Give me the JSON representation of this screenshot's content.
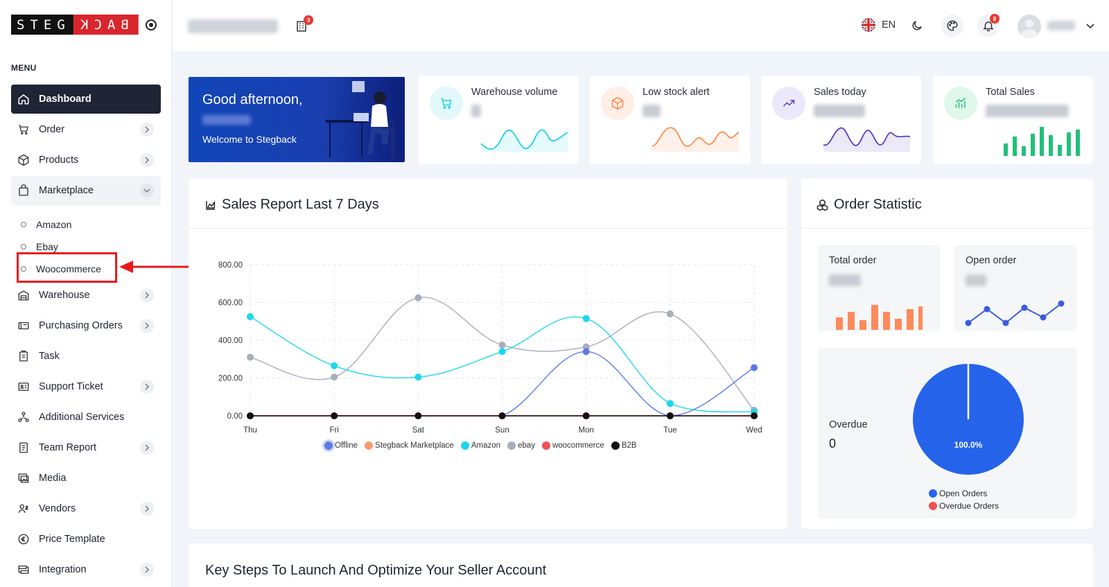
{
  "logo": {
    "left_text": "STEG",
    "right_text": "BACK"
  },
  "sidebar": {
    "menu_title": "MENU",
    "items": [
      {
        "label": "Dashboard",
        "icon": "home-icon",
        "active": true
      },
      {
        "label": "Order",
        "icon": "cart-icon"
      },
      {
        "label": "Products",
        "icon": "box-icon"
      },
      {
        "label": "Marketplace",
        "icon": "bag-icon",
        "open": true
      },
      {
        "label": "Warehouse",
        "icon": "warehouse-icon"
      },
      {
        "label": "Purchasing Orders",
        "icon": "purchase-icon"
      },
      {
        "label": "Task",
        "icon": "clipboard-icon"
      },
      {
        "label": "Support Ticket",
        "icon": "ticket-icon"
      },
      {
        "label": "Additional Services",
        "icon": "services-icon"
      },
      {
        "label": "Team Report",
        "icon": "report-icon"
      },
      {
        "label": "Media",
        "icon": "media-icon"
      },
      {
        "label": "Vendors",
        "icon": "vendors-icon"
      },
      {
        "label": "Price Template",
        "icon": "euro-icon"
      },
      {
        "label": "Integration",
        "icon": "integration-icon"
      }
    ],
    "sub_items": [
      "Amazon",
      "Ebay",
      "Woocommerce"
    ]
  },
  "topbar": {
    "building_badge": "3",
    "language": "EN",
    "notification_badge": "8"
  },
  "welcome": {
    "greeting": "Good afternoon,",
    "subtitle": "Welcome to Stegback"
  },
  "stats": [
    {
      "label": "Warehouse volume",
      "color": "#1dd3e6"
    },
    {
      "label": "Low stock alert",
      "color": "#ff8a4c"
    },
    {
      "label": "Sales today",
      "color": "#5b3fc4"
    },
    {
      "label": "Total Sales",
      "color": "#22c07a"
    }
  ],
  "sales_report": {
    "title": "Sales Report Last 7 Days",
    "legend": [
      "Offline",
      "Stegback Marketplace",
      "Amazon",
      "ebay",
      "woocommerce",
      "B2B"
    ]
  },
  "chart_data": {
    "type": "line",
    "categories": [
      "Thu",
      "Fri",
      "Sat",
      "Sun",
      "Mon",
      "Tue",
      "Wed"
    ],
    "ylim": [
      0,
      800
    ],
    "yticks": [
      "0.00",
      "200.00",
      "400.00",
      "600.00",
      "800.00"
    ],
    "series": [
      {
        "name": "Offline",
        "color": "#5b79e8",
        "values": [
          0,
          0,
          0,
          0,
          340,
          0,
          255
        ]
      },
      {
        "name": "Stegback Marketplace",
        "color": "#ff9a6b",
        "values": [
          0,
          0,
          0,
          0,
          0,
          0,
          0
        ]
      },
      {
        "name": "Amazon",
        "color": "#1dd7ec",
        "values": [
          525,
          265,
          205,
          340,
          515,
          65,
          20
        ]
      },
      {
        "name": "ebay",
        "color": "#a6adbb",
        "values": [
          310,
          205,
          625,
          375,
          365,
          540,
          30
        ]
      },
      {
        "name": "woocommerce",
        "color": "#ef5350",
        "values": [
          0,
          0,
          0,
          0,
          0,
          0,
          0
        ]
      },
      {
        "name": "B2B",
        "color": "#111111",
        "values": [
          0,
          0,
          0,
          0,
          0,
          0,
          0
        ]
      }
    ]
  },
  "order_statistic": {
    "title": "Order Statistic",
    "total_order_label": "Total order",
    "open_order_label": "Open order",
    "overdue_label": "Overdue",
    "overdue_value": "0",
    "pie_label": "100.0%",
    "pie_legend": [
      "Open Orders",
      "Overdue Orders"
    ],
    "pie_colors": [
      "#2563eb",
      "#ef5350"
    ]
  },
  "key_steps": {
    "title": "Key Steps To Launch And Optimize Your Seller Account"
  }
}
